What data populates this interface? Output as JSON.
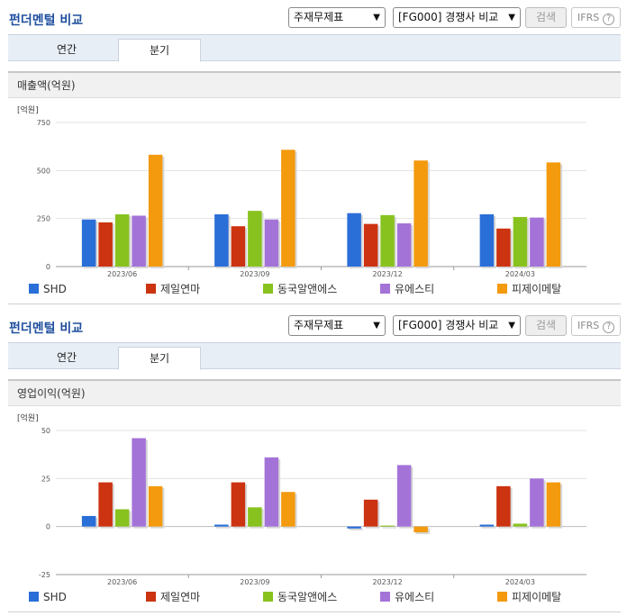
{
  "panels": [
    {
      "title": "펀더멘털 비교",
      "select_statement": "주재무제표",
      "select_peer": "[FG000] 경쟁사 비교",
      "search_label": "검색",
      "ifrs_label": "IFRS",
      "ifrs_help": "?",
      "tabs": [
        "연간",
        "분기"
      ],
      "active_tab": 1,
      "section_title": "매출액(억원)"
    },
    {
      "title": "펀더멘털 비교",
      "select_statement": "주재무제표",
      "select_peer": "[FG000] 경쟁사 비교",
      "search_label": "검색",
      "ifrs_label": "IFRS",
      "ifrs_help": "?",
      "tabs": [
        "연간",
        "분기"
      ],
      "active_tab": 1,
      "section_title": "영업이익(억원)"
    }
  ],
  "chart_data": [
    {
      "type": "bar",
      "unit_label": "[억원]",
      "categories": [
        "2023/06",
        "2023/09",
        "2023/12",
        "2024/03"
      ],
      "ylim": [
        0,
        750
      ],
      "yticks": [
        0,
        250,
        500,
        750
      ],
      "legend_placement": "bottom",
      "series": [
        {
          "name": "SHD",
          "color": "#2a6ed8",
          "values": [
            245,
            272,
            278,
            272
          ]
        },
        {
          "name": "제일연마",
          "color": "#cc3311",
          "values": [
            230,
            210,
            222,
            198
          ]
        },
        {
          "name": "동국알앤에스",
          "color": "#88c21f",
          "values": [
            272,
            290,
            268,
            258
          ]
        },
        {
          "name": "유에스티",
          "color": "#a473d8",
          "values": [
            265,
            245,
            225,
            255
          ]
        },
        {
          "name": "피제이메탈",
          "color": "#f39a0e",
          "values": [
            582,
            608,
            552,
            542
          ]
        }
      ]
    },
    {
      "type": "bar",
      "unit_label": "[억원]",
      "categories": [
        "2023/06",
        "2023/09",
        "2023/12",
        "2024/03"
      ],
      "ylim": [
        -25,
        50
      ],
      "yticks": [
        -25,
        0,
        25,
        50
      ],
      "legend_placement": "bottom",
      "series": [
        {
          "name": "SHD",
          "color": "#2a6ed8",
          "values": [
            5.5,
            1,
            -1,
            1
          ]
        },
        {
          "name": "제일연마",
          "color": "#cc3311",
          "values": [
            23,
            23,
            14,
            21
          ]
        },
        {
          "name": "동국알앤에스",
          "color": "#88c21f",
          "values": [
            9,
            10,
            0.5,
            1.5
          ]
        },
        {
          "name": "유에스티",
          "color": "#a473d8",
          "values": [
            46,
            36,
            32,
            25
          ]
        },
        {
          "name": "피제이메탈",
          "color": "#f39a0e",
          "values": [
            21,
            18,
            -3,
            23
          ]
        }
      ]
    }
  ]
}
